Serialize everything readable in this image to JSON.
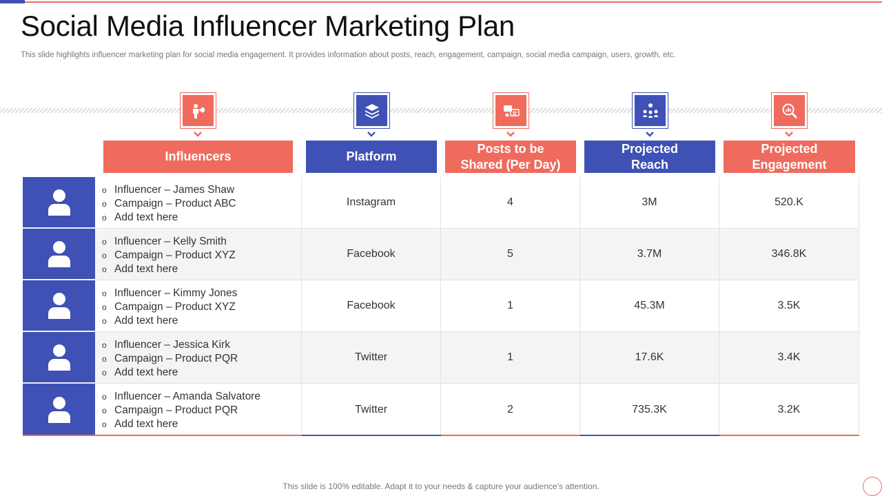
{
  "title": "Social Media Influencer Marketing Plan",
  "subtitle": "This slide highlights influencer marketing plan for social media engagement. It provides information about posts, reach, engagement, campaign, social media campaign, users, growth, etc.",
  "headers": [
    {
      "label": "Influencers",
      "icon": "megaphone-person-icon",
      "color": "#ef6b5e"
    },
    {
      "label": "Platform",
      "icon": "layers-icon",
      "color": "#3f51b5"
    },
    {
      "label": "Posts to be Shared (Per Day)",
      "icon": "posts-icon",
      "color": "#ef6b5e"
    },
    {
      "label": "Projected Reach",
      "icon": "network-users-icon",
      "color": "#3f51b5"
    },
    {
      "label": "Projected Engagement",
      "icon": "magnifier-chart-icon",
      "color": "#ef6b5e"
    }
  ],
  "bullet": "o",
  "rows": [
    {
      "influencer": "Influencer  – James Shaw",
      "campaign": "Campaign – Product ABC",
      "note": "Add text here",
      "platform": "Instagram",
      "posts": "4",
      "reach": "3M",
      "engagement": "520.K"
    },
    {
      "influencer": "Influencer  – Kelly Smith",
      "campaign": "Campaign – Product XYZ",
      "note": "Add text here",
      "platform": "Facebook",
      "posts": "5",
      "reach": "3.7M",
      "engagement": "346.8K"
    },
    {
      "influencer": "Influencer  – Kimmy Jones",
      "campaign": "Campaign – Product XYZ",
      "note": "Add text here",
      "platform": "Facebook",
      "posts": "1",
      "reach": "45.3M",
      "engagement": "3.5K"
    },
    {
      "influencer": "Influencer  – Jessica Kirk",
      "campaign": "Campaign – Product PQR",
      "note": "Add text here",
      "platform": "Twitter",
      "posts": "1",
      "reach": "17.6K",
      "engagement": "3.4K"
    },
    {
      "influencer": "Influencer  – Amanda Salvatore",
      "campaign": "Campaign – Product PQR",
      "note": "Add text here",
      "platform": "Twitter",
      "posts": "2",
      "reach": "735.3K",
      "engagement": "3.2K"
    }
  ],
  "footer": "This slide is 100% editable. Adapt it to your needs & capture your audience’s attention.",
  "colors": {
    "accent_red": "#ef6b5e",
    "accent_blue": "#3f51b5"
  }
}
